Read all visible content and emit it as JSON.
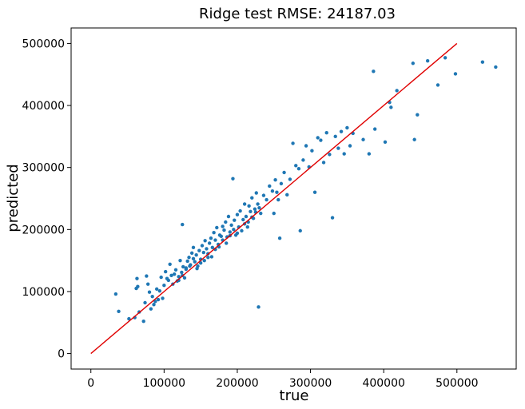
{
  "chart_data": {
    "type": "scatter",
    "title": "Ridge test RMSE: 24187.03",
    "xlabel": "true",
    "ylabel": "predicted",
    "xlim": [
      -27000,
      581000
    ],
    "ylim": [
      -25000,
      525000
    ],
    "x_ticks": [
      0,
      100000,
      200000,
      300000,
      400000,
      500000
    ],
    "y_ticks": [
      0,
      100000,
      200000,
      300000,
      400000,
      500000
    ],
    "x_tick_labels": [
      "0",
      "100000",
      "200000",
      "300000",
      "400000",
      "500000"
    ],
    "y_tick_labels": [
      "0",
      "100000",
      "200000",
      "300000",
      "400000",
      "500000"
    ],
    "grid": false,
    "colors": {
      "points": "#1f77b4",
      "reference_line": "#e00000"
    },
    "reference_line": {
      "x": [
        0,
        500000
      ],
      "y": [
        0,
        500000
      ]
    },
    "series": [
      {
        "values": [
          [
            34000,
            96000
          ],
          [
            38000,
            68000
          ],
          [
            52000,
            56000
          ],
          [
            60000,
            58000
          ],
          [
            62000,
            105000
          ],
          [
            63000,
            121000
          ],
          [
            64000,
            108000
          ],
          [
            66000,
            67000
          ],
          [
            72000,
            52000
          ],
          [
            74000,
            82000
          ],
          [
            76000,
            125000
          ],
          [
            78000,
            112000
          ],
          [
            80000,
            99000
          ],
          [
            82000,
            72000
          ],
          [
            84000,
            92000
          ],
          [
            86000,
            79000
          ],
          [
            88000,
            84000
          ],
          [
            90000,
            104000
          ],
          [
            92000,
            87000
          ],
          [
            94000,
            101000
          ],
          [
            96000,
            123000
          ],
          [
            98000,
            89000
          ],
          [
            100000,
            110000
          ],
          [
            102000,
            132000
          ],
          [
            104000,
            121000
          ],
          [
            106000,
            118000
          ],
          [
            108000,
            144000
          ],
          [
            110000,
            126000
          ],
          [
            112000,
            112000
          ],
          [
            114000,
            128000
          ],
          [
            116000,
            135000
          ],
          [
            118000,
            117000
          ],
          [
            120000,
            124000
          ],
          [
            122000,
            150000
          ],
          [
            124000,
            131000
          ],
          [
            125000,
            208000
          ],
          [
            126000,
            140000
          ],
          [
            128000,
            122000
          ],
          [
            130000,
            138000
          ],
          [
            132000,
            149000
          ],
          [
            134000,
            155000
          ],
          [
            136000,
            143000
          ],
          [
            138000,
            162000
          ],
          [
            140000,
            171000
          ],
          [
            142000,
            148000
          ],
          [
            144000,
            159000
          ],
          [
            146000,
            141000
          ],
          [
            148000,
            166000
          ],
          [
            150000,
            152000
          ],
          [
            152000,
            174000
          ],
          [
            154000,
            163000
          ],
          [
            156000,
            182000
          ],
          [
            158000,
            169000
          ],
          [
            160000,
            155000
          ],
          [
            162000,
            178000
          ],
          [
            164000,
            186000
          ],
          [
            166000,
            171000
          ],
          [
            168000,
            195000
          ],
          [
            170000,
            183000
          ],
          [
            172000,
            203000
          ],
          [
            174000,
            176000
          ],
          [
            176000,
            191000
          ],
          [
            178000,
            189000
          ],
          [
            180000,
            205000
          ],
          [
            182000,
            199000
          ],
          [
            184000,
            212000
          ],
          [
            186000,
            188000
          ],
          [
            188000,
            221000
          ],
          [
            190000,
            196000
          ],
          [
            192000,
            207000
          ],
          [
            194000,
            282000
          ],
          [
            196000,
            215000
          ],
          [
            198000,
            191000
          ],
          [
            200000,
            224000
          ],
          [
            202000,
            204000
          ],
          [
            204000,
            230000
          ],
          [
            206000,
            198000
          ],
          [
            208000,
            216000
          ],
          [
            210000,
            241000
          ],
          [
            212000,
            221000
          ],
          [
            214000,
            204000
          ],
          [
            216000,
            238000
          ],
          [
            218000,
            229000
          ],
          [
            220000,
            251000
          ],
          [
            222000,
            218000
          ],
          [
            224000,
            233000
          ],
          [
            226000,
            259000
          ],
          [
            228000,
            241000
          ],
          [
            229000,
            75000
          ],
          [
            232000,
            226000
          ],
          [
            236000,
            255000
          ],
          [
            240000,
            248000
          ],
          [
            244000,
            270000
          ],
          [
            248000,
            262000
          ],
          [
            250000,
            226000
          ],
          [
            252000,
            280000
          ],
          [
            254000,
            260000
          ],
          [
            256000,
            248000
          ],
          [
            258000,
            186000
          ],
          [
            260000,
            274000
          ],
          [
            264000,
            292000
          ],
          [
            268000,
            256000
          ],
          [
            272000,
            281000
          ],
          [
            276000,
            339000
          ],
          [
            280000,
            303000
          ],
          [
            284000,
            298000
          ],
          [
            286000,
            198000
          ],
          [
            290000,
            312000
          ],
          [
            294000,
            335000
          ],
          [
            298000,
            301000
          ],
          [
            302000,
            327000
          ],
          [
            306000,
            260000
          ],
          [
            310000,
            348000
          ],
          [
            314000,
            344000
          ],
          [
            318000,
            308000
          ],
          [
            322000,
            356000
          ],
          [
            326000,
            321000
          ],
          [
            330000,
            219000
          ],
          [
            334000,
            350000
          ],
          [
            338000,
            331000
          ],
          [
            342000,
            358000
          ],
          [
            346000,
            322000
          ],
          [
            350000,
            364000
          ],
          [
            354000,
            335000
          ],
          [
            358000,
            355000
          ],
          [
            372000,
            345000
          ],
          [
            380000,
            322000
          ],
          [
            386000,
            455000
          ],
          [
            388000,
            362000
          ],
          [
            402000,
            341000
          ],
          [
            408000,
            405000
          ],
          [
            410000,
            397000
          ],
          [
            418000,
            424000
          ],
          [
            440000,
            468000
          ],
          [
            442000,
            345000
          ],
          [
            446000,
            385000
          ],
          [
            460000,
            472000
          ],
          [
            474000,
            433000
          ],
          [
            484000,
            477000
          ],
          [
            498000,
            451000
          ],
          [
            535000,
            470000
          ],
          [
            553000,
            462000
          ],
          [
            120000,
            118000
          ],
          [
            125000,
            126000
          ],
          [
            130000,
            136000
          ],
          [
            135000,
            141000
          ],
          [
            140000,
            153000
          ],
          [
            145000,
            137000
          ],
          [
            150000,
            146000
          ],
          [
            155000,
            150000
          ],
          [
            160000,
            161000
          ],
          [
            165000,
            156000
          ],
          [
            170000,
            168000
          ],
          [
            175000,
            172000
          ],
          [
            180000,
            183000
          ],
          [
            185000,
            178000
          ],
          [
            190000,
            190000
          ],
          [
            195000,
            200000
          ],
          [
            200000,
            194000
          ],
          [
            210000,
            209000
          ],
          [
            215000,
            212000
          ],
          [
            220000,
            220000
          ],
          [
            225000,
            228000
          ],
          [
            230000,
            235000
          ]
        ]
      }
    ]
  }
}
